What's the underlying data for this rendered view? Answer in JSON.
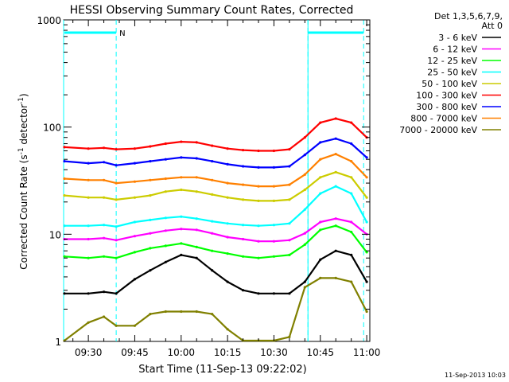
{
  "chart_data": {
    "type": "line",
    "title": "HESSI Observing Summary Count Rates, Corrected",
    "xlabel": "Start Time (11-Sep-13 09:22:02)",
    "ylabel": "Corrected Count Rate (s",
    "ylabel_sup1": "-1",
    "ylabel_mid": " detector",
    "ylabel_sup2": "-1",
    "ylabel_end": ")",
    "y_scale": "log",
    "ylim": [
      1,
      1000
    ],
    "xlim": [
      "09:22",
      "11:01"
    ],
    "x_ticks": [
      "09:30",
      "09:45",
      "10:00",
      "10:15",
      "10:30",
      "10:45",
      "11:00"
    ],
    "y_ticks": [
      "1",
      "10",
      "100",
      "1000"
    ],
    "legend_position": "top-right",
    "legend_header": [
      "Det 1,3,5,6,7,9,",
      "Att 0"
    ],
    "timestamp": "11-Sep-2013 10:03",
    "attenuator_intervals": [
      {
        "start": "09:22",
        "end": "09:39",
        "label": "N"
      },
      {
        "start": "10:41",
        "end": "10:59",
        "label": ""
      }
    ],
    "eclipse_boundaries": [
      "09:39",
      "10:41",
      "10:59"
    ],
    "time_knots": [
      "09:22",
      "09:30",
      "09:35",
      "09:39",
      "09:45",
      "09:50",
      "09:55",
      "10:00",
      "10:05",
      "10:10",
      "10:15",
      "10:20",
      "10:25",
      "10:30",
      "10:35",
      "10:40",
      "10:45",
      "10:50",
      "10:55",
      "11:00"
    ],
    "series": [
      {
        "name": "3 - 6 keV",
        "color": "#000000",
        "values": [
          2.8,
          2.8,
          2.9,
          2.8,
          3.8,
          4.6,
          5.5,
          6.4,
          6.0,
          4.6,
          3.6,
          3.0,
          2.8,
          2.8,
          2.8,
          3.6,
          5.8,
          7.0,
          6.4,
          3.6
        ]
      },
      {
        "name": "6 - 12 keV",
        "color": "#ff00ff",
        "values": [
          9.0,
          9.0,
          9.2,
          8.8,
          9.6,
          10.2,
          10.8,
          11.2,
          11.0,
          10.2,
          9.4,
          9.0,
          8.6,
          8.6,
          8.8,
          10.2,
          13.0,
          14.0,
          13.0,
          10.0
        ]
      },
      {
        "name": "12 - 25 keV",
        "color": "#00ff00",
        "values": [
          6.2,
          6.0,
          6.2,
          6.0,
          6.8,
          7.4,
          7.8,
          8.2,
          7.6,
          7.0,
          6.6,
          6.2,
          6.0,
          6.2,
          6.4,
          8.0,
          11.0,
          12.0,
          10.5,
          6.8
        ]
      },
      {
        "name": "25 - 50 keV",
        "color": "#00ffff",
        "values": [
          12.0,
          12.0,
          12.2,
          11.8,
          13.0,
          13.6,
          14.2,
          14.6,
          14.0,
          13.2,
          12.6,
          12.2,
          12.0,
          12.2,
          12.6,
          17.0,
          24.0,
          28.0,
          24.0,
          13.0
        ]
      },
      {
        "name": "50 - 100 keV",
        "color": "#cccc00",
        "values": [
          23.0,
          22.0,
          22.0,
          21.0,
          22.0,
          23.0,
          25.0,
          26.0,
          25.0,
          23.5,
          22.0,
          21.0,
          20.5,
          20.5,
          21.0,
          26.0,
          34.0,
          38.0,
          34.0,
          22.0
        ]
      },
      {
        "name": "100 - 300 keV",
        "color": "#ff0000",
        "values": [
          65.0,
          63.0,
          64.0,
          62.0,
          63.0,
          66.0,
          70.0,
          73.0,
          72.0,
          67.0,
          63.0,
          61.0,
          60.0,
          60.0,
          62.0,
          80.0,
          110.0,
          120.0,
          110.0,
          80.0
        ]
      },
      {
        "name": "300 - 800 keV",
        "color": "#0000ff",
        "values": [
          48.0,
          46.0,
          47.0,
          44.0,
          46.0,
          48.0,
          50.0,
          52.0,
          51.0,
          48.0,
          45.0,
          43.0,
          42.0,
          42.0,
          43.0,
          55.0,
          72.0,
          78.0,
          70.0,
          52.0
        ]
      },
      {
        "name": "800 - 7000 keV",
        "color": "#ff8000",
        "values": [
          33.0,
          32.0,
          32.0,
          30.0,
          31.0,
          32.0,
          33.0,
          34.0,
          34.0,
          32.0,
          30.0,
          29.0,
          28.0,
          28.0,
          29.0,
          36.0,
          50.0,
          56.0,
          48.0,
          34.0
        ]
      },
      {
        "name": "7000 - 20000 keV",
        "color": "#808000",
        "values": [
          1.0,
          1.5,
          1.7,
          1.4,
          1.4,
          1.8,
          1.9,
          1.9,
          1.9,
          1.8,
          1.3,
          1.0,
          1.0,
          1.0,
          1.1,
          3.2,
          3.9,
          3.9,
          3.6,
          1.9
        ]
      }
    ]
  }
}
